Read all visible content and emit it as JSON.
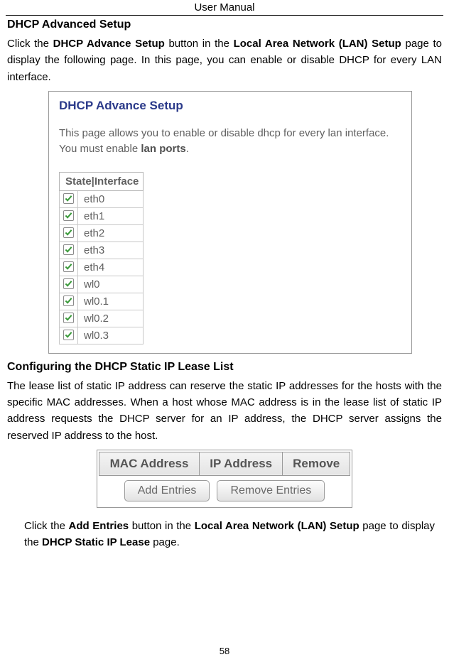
{
  "header": {
    "title": "User Manual"
  },
  "section1": {
    "heading": "DHCP Advanced Setup",
    "para_parts": {
      "p1": "Click the ",
      "b1": "DHCP Advance Setup",
      "p2": " button in the ",
      "b2": "Local Area Network (LAN) Setup",
      "p3": " page to display the following page. In this page, you can enable or disable DHCP for every LAN interface."
    }
  },
  "screenshot1": {
    "title": "DHCP Advance Setup",
    "desc_p1": "This page allows you to enable or disable dhcp for every lan interface. You must enable ",
    "desc_b": "lan ports",
    "desc_p2": ".",
    "table_header": "State|Interface",
    "interfaces": [
      {
        "name": "eth0",
        "checked": true
      },
      {
        "name": "eth1",
        "checked": true
      },
      {
        "name": "eth2",
        "checked": true
      },
      {
        "name": "eth3",
        "checked": true
      },
      {
        "name": "eth4",
        "checked": true
      },
      {
        "name": "wl0",
        "checked": true
      },
      {
        "name": "wl0.1",
        "checked": true
      },
      {
        "name": "wl0.2",
        "checked": true
      },
      {
        "name": "wl0.3",
        "checked": true
      }
    ]
  },
  "section2": {
    "heading": "Configuring the DHCP Static IP Lease List",
    "para": "The lease list of static IP address can reserve the static IP addresses for the hosts with the specific MAC addresses. When a host whose MAC address is in the lease list of static IP address requests the DHCP server for an IP address, the DHCP server assigns the reserved IP address to the host."
  },
  "screenshot2": {
    "columns": [
      "MAC Address",
      "IP Address",
      "Remove"
    ],
    "buttons": {
      "add": "Add Entries",
      "remove": "Remove Entries"
    }
  },
  "section3": {
    "p1": "Click the ",
    "b1": "Add Entries",
    "p2": " button in the ",
    "b2": "Local Area Network (LAN) Setup",
    "p3": " page to display the ",
    "b3": "DHCP Static IP Lease",
    "p4": " page."
  },
  "page_number": "58",
  "colors": {
    "heading_blue": "#2b3a8a",
    "body_gray": "#606060",
    "check_green": "#3a9a3a",
    "border_gray": "#9a9a9a"
  }
}
